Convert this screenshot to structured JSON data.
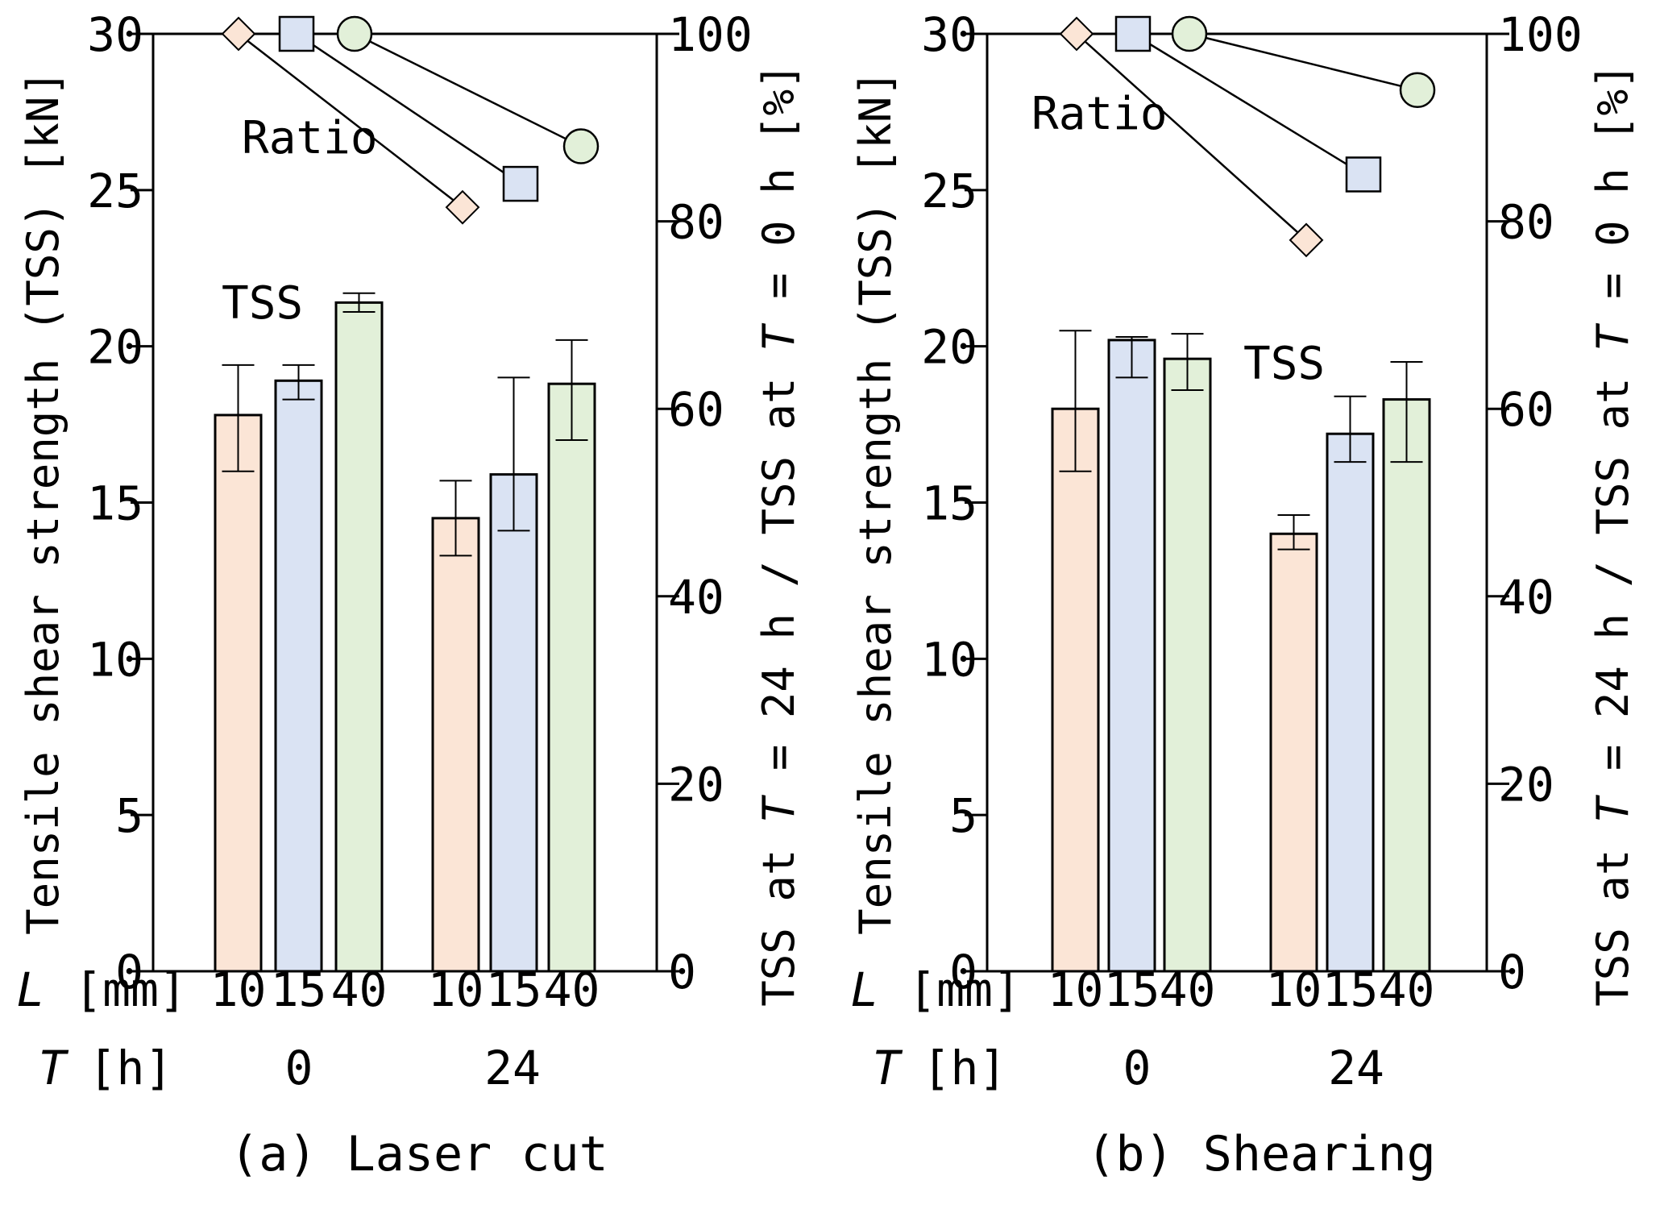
{
  "figure": {
    "row_labels": {
      "l_symbol": "L",
      "l_unit": "[mm]",
      "t_symbol": "T",
      "t_unit": "[h]"
    }
  },
  "chart_data": [
    {
      "type": "bar",
      "panel": "a",
      "caption": "(a) Laser cut",
      "title": "",
      "ylabel": "Tensile shear strength (TSS) [kN]",
      "y2label_parts": [
        "TSS at ",
        "T",
        " = 24 h / TSS at ",
        "T",
        " = 0 h [%]"
      ],
      "ylim": [
        0,
        30
      ],
      "y2lim": [
        0,
        100
      ],
      "yticks": [
        "0",
        "5",
        "10",
        "15",
        "20",
        "25",
        "30"
      ],
      "y2ticks": [
        "0",
        "20",
        "40",
        "60",
        "80",
        "100"
      ],
      "groups": [
        {
          "T": "0",
          "bars": [
            {
              "L": "10",
              "value": 17.8,
              "err_low": 16.0,
              "err_high": 19.4,
              "color": "#fbe5d6"
            },
            {
              "L": "15",
              "value": 18.9,
              "err_low": 18.3,
              "err_high": 19.4,
              "color": "#dae3f3"
            },
            {
              "L": "40",
              "value": 21.4,
              "err_low": 21.1,
              "err_high": 21.7,
              "color": "#e2f0d9"
            }
          ]
        },
        {
          "T": "24",
          "bars": [
            {
              "L": "10",
              "value": 14.5,
              "err_low": 13.3,
              "err_high": 15.7,
              "color": "#fbe5d6"
            },
            {
              "L": "15",
              "value": 15.9,
              "err_low": 14.1,
              "err_high": 19.0,
              "color": "#dae3f3"
            },
            {
              "L": "40",
              "value": 18.8,
              "err_low": 17.0,
              "err_high": 20.2,
              "color": "#e2f0d9"
            }
          ]
        }
      ],
      "ratio_series": [
        {
          "L": "10",
          "marker": "diamond",
          "color": "#fbe5d6",
          "start": 100,
          "end": 81.5
        },
        {
          "L": "15",
          "marker": "square",
          "color": "#dae3f3",
          "start": 100,
          "end": 84
        },
        {
          "L": "40",
          "marker": "circle",
          "color": "#e2f0d9",
          "start": 100,
          "end": 88
        }
      ],
      "annotations": {
        "ratio": "Ratio",
        "tss": "TSS"
      }
    },
    {
      "type": "bar",
      "panel": "b",
      "caption": "(b) Shearing",
      "title": "",
      "ylabel": "Tensile shear strength (TSS) [kN]",
      "y2label_parts": [
        "TSS at ",
        "T",
        " = 24 h / TSS at ",
        "T",
        " = 0 h [%]"
      ],
      "ylim": [
        0,
        30
      ],
      "y2lim": [
        0,
        100
      ],
      "yticks": [
        "0",
        "5",
        "10",
        "15",
        "20",
        "25",
        "30"
      ],
      "y2ticks": [
        "0",
        "20",
        "40",
        "60",
        "80",
        "100"
      ],
      "groups": [
        {
          "T": "0",
          "bars": [
            {
              "L": "10",
              "value": 18.0,
              "err_low": 16.0,
              "err_high": 20.5,
              "color": "#fbe5d6"
            },
            {
              "L": "15",
              "value": 20.2,
              "err_low": 19.0,
              "err_high": 20.3,
              "color": "#dae3f3"
            },
            {
              "L": "40",
              "value": 19.6,
              "err_low": 18.6,
              "err_high": 20.4,
              "color": "#e2f0d9"
            }
          ]
        },
        {
          "T": "24",
          "bars": [
            {
              "L": "10",
              "value": 14.0,
              "err_low": 13.5,
              "err_high": 14.6,
              "color": "#fbe5d6"
            },
            {
              "L": "15",
              "value": 17.2,
              "err_low": 16.3,
              "err_high": 18.4,
              "color": "#dae3f3"
            },
            {
              "L": "40",
              "value": 18.3,
              "err_low": 16.3,
              "err_high": 19.5,
              "color": "#e2f0d9"
            }
          ]
        }
      ],
      "ratio_series": [
        {
          "L": "10",
          "marker": "diamond",
          "color": "#fbe5d6",
          "start": 100,
          "end": 78
        },
        {
          "L": "15",
          "marker": "square",
          "color": "#dae3f3",
          "start": 100,
          "end": 85
        },
        {
          "L": "40",
          "marker": "circle",
          "color": "#e2f0d9",
          "start": 100,
          "end": 94
        }
      ],
      "annotations": {
        "ratio": "Ratio",
        "tss": "TSS"
      }
    }
  ]
}
